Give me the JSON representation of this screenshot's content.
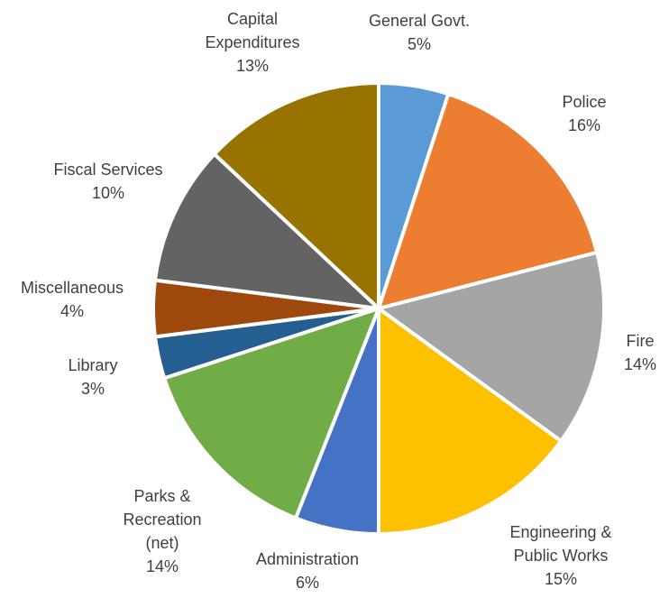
{
  "chart_data": {
    "type": "pie",
    "slices": [
      {
        "label_lines": [
          "General Govt."
        ],
        "value": 5,
        "display": "5%",
        "color": "#5B9BD5"
      },
      {
        "label_lines": [
          "Police"
        ],
        "value": 16,
        "display": "16%",
        "color": "#ED7D31"
      },
      {
        "label_lines": [
          "Fire"
        ],
        "value": 14,
        "display": "14%",
        "color": "#A5A5A5"
      },
      {
        "label_lines": [
          "Engineering &",
          "Public Works"
        ],
        "value": 15,
        "display": "15%",
        "color": "#FFC000"
      },
      {
        "label_lines": [
          "Administration"
        ],
        "value": 6,
        "display": "6%",
        "color": "#4472C4"
      },
      {
        "label_lines": [
          "Parks &",
          "Recreation",
          "(net)"
        ],
        "value": 14,
        "display": "14%",
        "color": "#70AD47"
      },
      {
        "label_lines": [
          "Library"
        ],
        "value": 3,
        "display": "3%",
        "color": "#255E91"
      },
      {
        "label_lines": [
          "Miscellaneous"
        ],
        "value": 4,
        "display": "4%",
        "color": "#9E480E"
      },
      {
        "label_lines": [
          "Fiscal Services"
        ],
        "value": 10,
        "display": "10%",
        "color": "#636363"
      },
      {
        "label_lines": [
          "Capital",
          "Expenditures"
        ],
        "value": 13,
        "display": "13%",
        "color": "#997300"
      }
    ],
    "start_angle_deg": 0,
    "direction": "clockwise",
    "legend": "none"
  }
}
